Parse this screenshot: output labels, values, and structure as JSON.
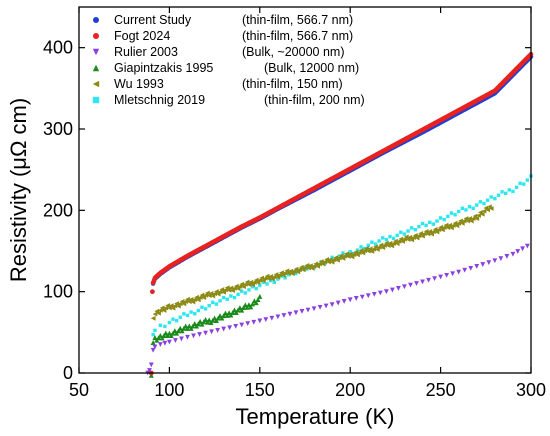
{
  "chart_data": {
    "type": "scatter",
    "xlabel": "Temperature (K)",
    "ylabel": "Resistivity (μΩ cm)",
    "xlim": [
      50,
      300
    ],
    "ylim": [
      0,
      450
    ],
    "xticks": [
      50,
      100,
      150,
      200,
      250,
      300
    ],
    "yticks": [
      0,
      100,
      200,
      300,
      400
    ],
    "grid": false,
    "legend_position": "top-left",
    "series": [
      {
        "name": "Current Study",
        "detail": "(thin-film, 566.7 nm)",
        "marker": "circle",
        "color": "#1f3fd6",
        "x": [
          90,
          90.6,
          91,
          92,
          95,
          100,
          110,
          120,
          130,
          140,
          150,
          160,
          180,
          200,
          220,
          240,
          260,
          280,
          300
        ],
        "y": [
          0,
          100,
          110,
          116,
          122,
          130,
          143,
          155,
          167,
          179,
          190,
          202,
          225,
          249,
          273,
          296,
          320,
          344,
          389
        ]
      },
      {
        "name": "Fogt 2024",
        "detail": "(thin-film, 566.7 nm)",
        "marker": "circle",
        "color": "#e8221f",
        "x": [
          90,
          90.6,
          91,
          92,
          95,
          100,
          110,
          120,
          130,
          140,
          150,
          160,
          180,
          200,
          220,
          240,
          260,
          280,
          300
        ],
        "y": [
          0,
          100,
          111,
          117,
          123,
          131,
          144,
          156,
          168,
          180,
          191,
          203,
          227,
          251,
          275,
          299,
          323,
          347,
          392
        ]
      },
      {
        "name": "Rulier 2003",
        "detail": "(Bulk, ~20000 nm)",
        "marker": "triangle-down",
        "color": "#8a3fe0",
        "x": [
          88,
          89,
          90,
          91,
          92,
          95,
          100,
          110,
          120,
          130,
          140,
          150,
          160,
          170,
          180,
          190,
          200,
          210,
          220,
          230,
          240,
          250,
          260,
          270,
          280,
          290,
          298
        ],
        "y": [
          0,
          3,
          10,
          28,
          32,
          35,
          38,
          44,
          49,
          54,
          59,
          64,
          69,
          74,
          79,
          84,
          90,
          95,
          100,
          106,
          112,
          118,
          124,
          131,
          138,
          146,
          156
        ]
      },
      {
        "name": "Giapintzakis 1995",
        "detail": "(Bulk, 12000 nm)",
        "marker": "triangle-up",
        "color": "#1a8a1a",
        "x": [
          90,
          91,
          92,
          95,
          100,
          105,
          110,
          115,
          120,
          125,
          130,
          135,
          140,
          145,
          150
        ],
        "y": [
          0,
          38,
          42,
          44,
          48,
          52,
          56,
          60,
          63,
          66,
          70,
          75,
          79,
          84,
          92
        ]
      },
      {
        "name": "Wu 1993",
        "detail": "(thin-film, 150 nm)",
        "marker": "triangle-left",
        "color": "#8c8a14",
        "x": [
          91,
          92,
          95,
          100,
          110,
          120,
          130,
          140,
          150,
          160,
          170,
          180,
          190,
          200,
          210,
          220,
          230,
          240,
          250,
          260,
          270,
          278
        ],
        "y": [
          70,
          73,
          77,
          81,
          88,
          95,
          101,
          107,
          114,
          120,
          126,
          132,
          139,
          145,
          151,
          157,
          164,
          170,
          177,
          184,
          192,
          205
        ]
      },
      {
        "name": "Mletschnig 2019",
        "detail": "(thin-film, 200 nm)",
        "marker": "square",
        "color": "#2ee6f0",
        "x": [
          91,
          92,
          95,
          100,
          110,
          120,
          130,
          140,
          150,
          160,
          170,
          180,
          190,
          200,
          210,
          220,
          230,
          240,
          250,
          260,
          270,
          280,
          290,
          300
        ],
        "y": [
          50,
          53,
          57,
          62,
          72,
          81,
          90,
          99,
          107,
          116,
          124,
          132,
          140,
          148,
          157,
          165,
          173,
          181,
          189,
          198,
          207,
          216,
          226,
          240
        ]
      }
    ]
  }
}
